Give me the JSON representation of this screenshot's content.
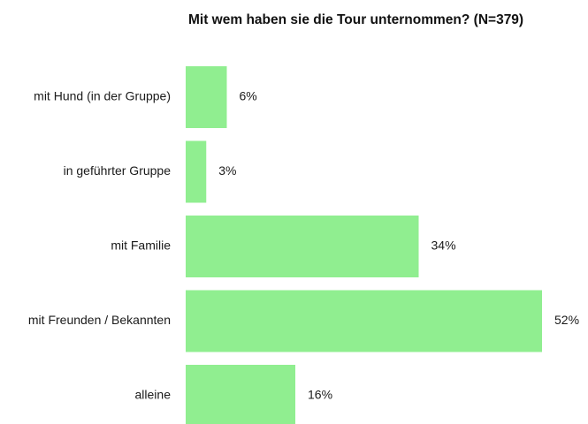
{
  "chart_data": {
    "type": "bar",
    "orientation": "horizontal",
    "title": "Mit wem haben sie die Tour unternommen? (N=379)",
    "categories": [
      "mit Hund (in der Gruppe)",
      "in geführter Gruppe",
      "mit Familie",
      "mit Freunden / Bekannten",
      "alleine"
    ],
    "values": [
      6,
      3,
      34,
      52,
      16
    ],
    "value_labels": [
      "6%",
      "3%",
      "34%",
      "52%",
      "16%"
    ],
    "unit": "%",
    "xlim": [
      0,
      52
    ],
    "grid": false,
    "legend": "none",
    "bar_color": "#90ee90"
  }
}
